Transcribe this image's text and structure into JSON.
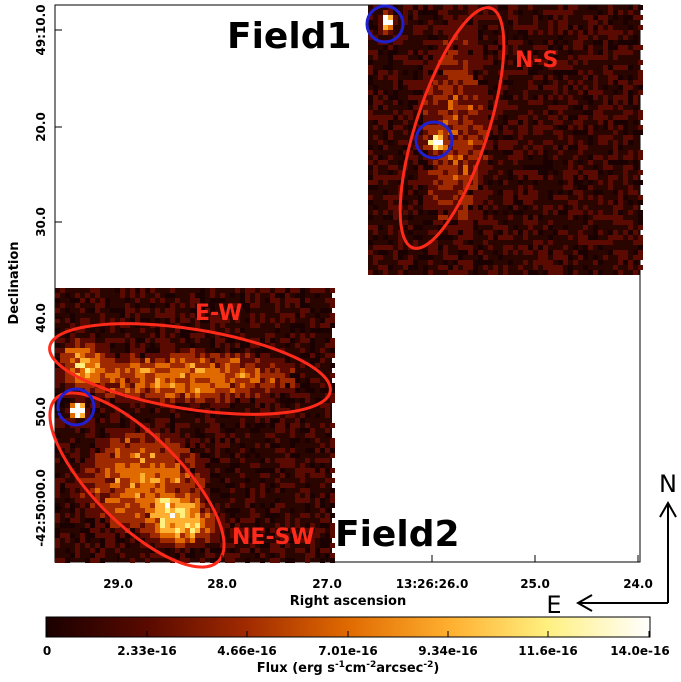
{
  "figure": {
    "field1_label": "Field1",
    "field2_label": "Field2",
    "region_labels": {
      "ns": "N-S",
      "ew": "E-W",
      "nesw": "NE-SW"
    },
    "y_axis": {
      "label": "Declination",
      "ticks": [
        "49:10.0",
        "20.0",
        "30.0",
        "40.0",
        "50.0",
        "42:50:00.0"
      ],
      "last_tick_prefix": "-"
    },
    "x_axis": {
      "label": "Right ascension",
      "ticks": [
        "29.0",
        "28.0",
        "27.0",
        "13:26:26.0",
        "25.0",
        "24.0"
      ]
    },
    "compass": {
      "north": "N",
      "east": "E"
    },
    "colorbar": {
      "label_parts": [
        "Flux (erg s",
        "-1",
        "cm",
        "-2",
        "arcsec",
        "-2",
        ")"
      ],
      "ticks": [
        "0",
        "2.33e-16",
        "4.66e-16",
        "7.01e-16",
        "9.34e-16",
        "11.6e-16",
        "14.0e-16"
      ],
      "colors": [
        "#1a0000",
        "#5a0a00",
        "#a02a00",
        "#e06a00",
        "#ffb030",
        "#fff080",
        "#ffffff"
      ]
    },
    "colors": {
      "region_ellipse": "#ff2a1a",
      "point_source": "#2020d0",
      "region_text": "#ff2a1a"
    }
  }
}
